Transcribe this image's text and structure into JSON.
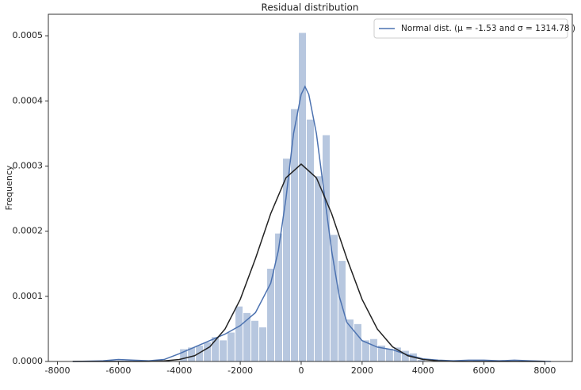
{
  "chart_data": {
    "type": "histogram",
    "title": "Residual distribution",
    "y_label": "Frequency",
    "bins": [
      -6590,
      -6330,
      -6070,
      -5810,
      -5550,
      -5290,
      -5030,
      -4770,
      -4510,
      -4250,
      -3990,
      -3730,
      -3470,
      -3210,
      -2950,
      -2690,
      -2430,
      -2170,
      -1910,
      -1650,
      -1390,
      -1130,
      -870,
      -610,
      -350,
      -90,
      170,
      430,
      690,
      950,
      1210,
      1470,
      1730,
      1990,
      2250,
      2510,
      2770,
      3030,
      3290,
      3550,
      3810,
      4070,
      4330,
      4590,
      4850,
      5110,
      5370,
      5630,
      5890,
      6150,
      6410,
      6670,
      6930,
      7190
    ],
    "counts": [
      0,
      2e-06,
      2e-06,
      2e-06,
      2e-06,
      0,
      0,
      0,
      0,
      0,
      1.95e-05,
      2.2e-05,
      2.5e-05,
      3e-05,
      3.8e-05,
      3.3e-05,
      4.5e-05,
      8.5e-05,
      7.5e-05,
      6.3e-05,
      5.3e-05,
      0.000143,
      0.000197,
      0.000312,
      0.000388,
      0.000505,
      0.000372,
      0.000285,
      0.000348,
      0.000195,
      0.000155,
      6.5e-05,
      5.8e-05,
      3.3e-05,
      3.5e-05,
      2.5e-05,
      2e-05,
      2.2e-05,
      1.7e-05,
      1.3e-05,
      3e-06,
      0,
      0,
      0,
      0,
      0,
      0,
      2e-06,
      0,
      0,
      2e-06,
      0,
      0
    ],
    "color": "#4c72b0",
    "series": [
      {
        "name": "Normal dist. (μ =  -1.53 and σ =  1314.78 )",
        "color": "#4c72b0",
        "x": [
          -7500,
          -6500,
          -6000,
          -5500,
          -5000,
          -4500,
          -4000,
          -3500,
          -3000,
          -2500,
          -2000,
          -1500,
          -1000,
          -750,
          -500,
          -250,
          0,
          125,
          250,
          500,
          750,
          1000,
          1250,
          1500,
          2000,
          2500,
          3000,
          3500,
          4000,
          4500,
          5000,
          5500,
          6000,
          6500,
          7000,
          7500,
          8200
        ],
        "values": [
          0,
          1e-06,
          3e-06,
          2e-06,
          1e-06,
          3e-06,
          1.2e-05,
          2.2e-05,
          3.2e-05,
          4.2e-05,
          5.5e-05,
          7.5e-05,
          0.00012,
          0.00017,
          0.00025,
          0.00035,
          0.00041,
          0.000422,
          0.00041,
          0.00035,
          0.00026,
          0.00017,
          0.0001,
          6e-05,
          3.2e-05,
          2.2e-05,
          1.8e-05,
          1e-05,
          4e-06,
          2e-06,
          1e-06,
          2e-06,
          2e-06,
          1e-06,
          2e-06,
          1e-06,
          0
        ]
      },
      {
        "color": "#222222",
        "x": [
          -7500,
          -7000,
          -6500,
          -6000,
          -5500,
          -5000,
          -4500,
          -4000,
          -3500,
          -3000,
          -2500,
          -2000,
          -1500,
          -1000,
          -500,
          0,
          500,
          1000,
          1500,
          2000,
          2500,
          3000,
          3500,
          4000,
          4500,
          5000,
          5500,
          6000,
          6500,
          7000,
          7500,
          8000
        ],
        "values": [
          0,
          0,
          0,
          0,
          0,
          2e-07,
          9e-07,
          3e-06,
          8.8e-06,
          2.25e-05,
          4.98e-05,
          9.53e-05,
          0.000158,
          0.000227,
          0.000282,
          0.000303,
          0.000282,
          0.000227,
          0.000158,
          9.53e-05,
          4.98e-05,
          2.25e-05,
          8.8e-06,
          3e-06,
          9e-07,
          2e-07,
          0,
          0,
          0,
          0,
          0,
          0
        ]
      }
    ],
    "xlim": [
      -8300,
      8900
    ],
    "ylim": [
      0,
      0.000533
    ],
    "xticks": [
      -8000,
      -6000,
      -4000,
      -2000,
      0,
      2000,
      4000,
      6000,
      8000
    ],
    "yticks": [
      {
        "value": 0,
        "label": "0.0000"
      },
      {
        "value": 0.0001,
        "label": "0.0001"
      },
      {
        "value": 0.0002,
        "label": "0.0002"
      },
      {
        "value": 0.0003,
        "label": "0.0003"
      },
      {
        "value": 0.0004,
        "label": "0.0004"
      },
      {
        "value": 0.0005,
        "label": "0.0005"
      }
    ],
    "legend": "upper right"
  }
}
